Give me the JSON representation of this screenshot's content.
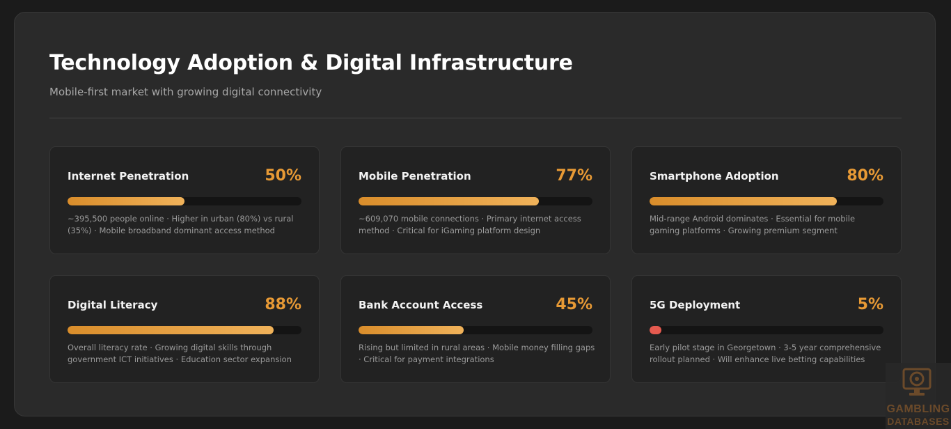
{
  "header": {
    "title": "Technology Adoption & Digital Infrastructure",
    "subtitle": "Mobile-first market with growing digital connectivity"
  },
  "colors": {
    "accent": "#e89a35",
    "bar_gradient_start": "#d98d2b",
    "bar_gradient_end": "#f0b25a",
    "low_indicator": "#e55a4f"
  },
  "metrics": [
    {
      "label": "Internet Penetration",
      "value": "50%",
      "percent": 50,
      "description": "~395,500 people online · Higher in urban (80%) vs rural (35%) · Mobile broadband dominant access method"
    },
    {
      "label": "Mobile Penetration",
      "value": "77%",
      "percent": 77,
      "description": "~609,070 mobile connections · Primary internet access method · Critical for iGaming platform design"
    },
    {
      "label": "Smartphone Adoption",
      "value": "80%",
      "percent": 80,
      "description": "Mid-range Android dominates · Essential for mobile gaming platforms · Growing premium segment"
    },
    {
      "label": "Digital Literacy",
      "value": "88%",
      "percent": 88,
      "description": "Overall literacy rate · Growing digital skills through government ICT initiatives · Education sector expansion"
    },
    {
      "label": "Bank Account Access",
      "value": "45%",
      "percent": 45,
      "description": "Rising but limited in rural areas · Mobile money filling gaps · Critical for payment integrations"
    },
    {
      "label": "5G Deployment",
      "value": "5%",
      "percent": 5,
      "description": "Early pilot stage in Georgetown · 3-5 year comprehensive rollout planned · Will enhance live betting capabilities"
    }
  ],
  "watermark": {
    "line1": "GAMBLING",
    "line2": "DATABASES",
    "icon": "casino-chip-monitor-icon"
  }
}
